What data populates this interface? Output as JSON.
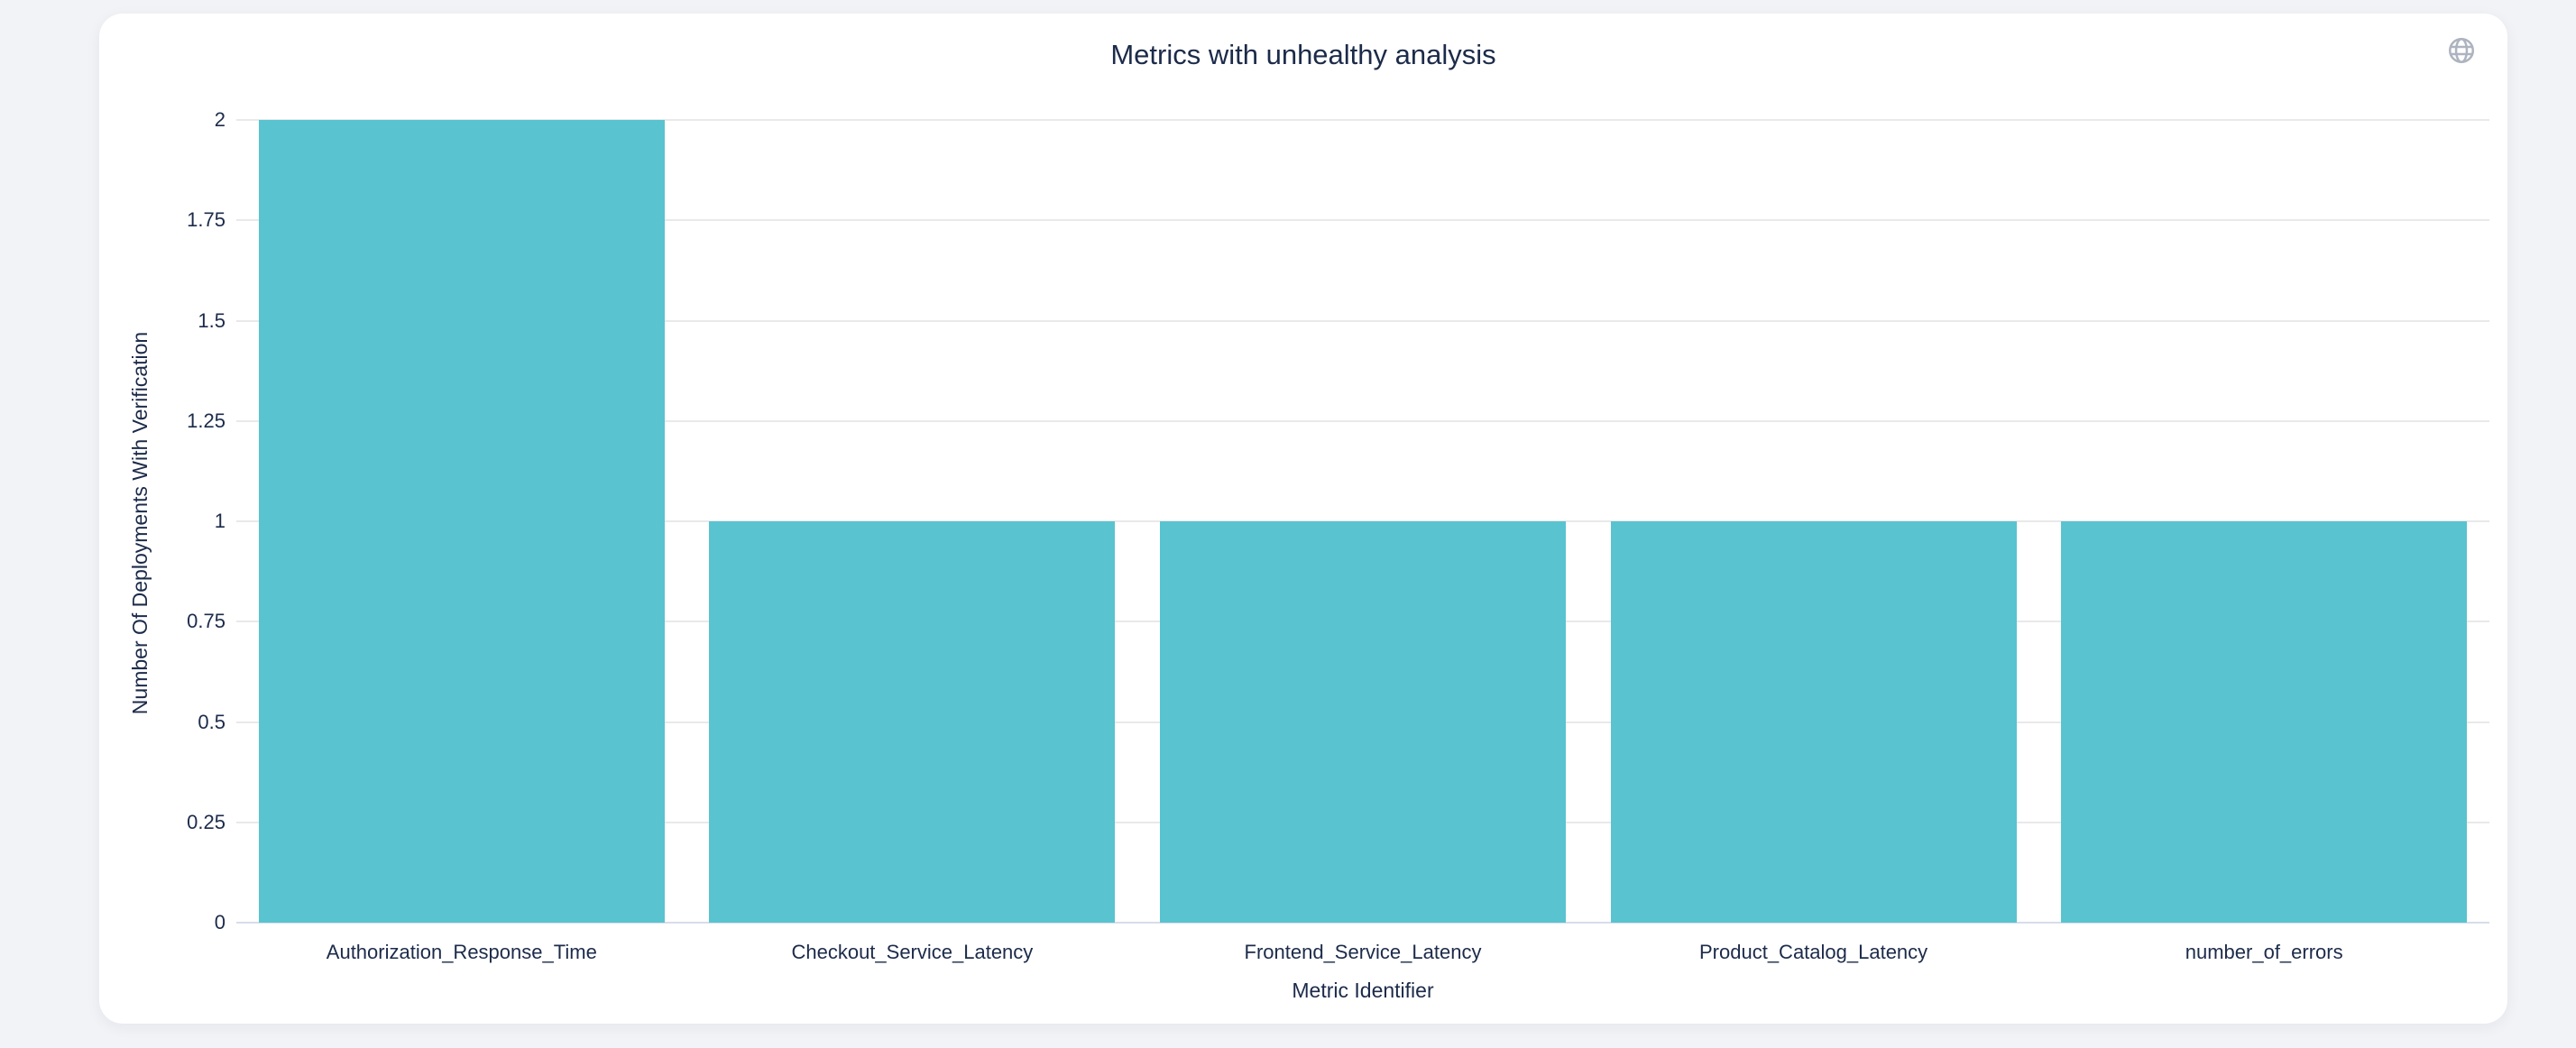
{
  "header": {
    "title": "Metrics with unhealthy analysis",
    "icon": "globe-icon"
  },
  "chart_data": {
    "type": "bar",
    "title": "Metrics with unhealthy analysis",
    "categories": [
      "Authorization_Response_Time",
      "Checkout_Service_Latency",
      "Frontend_Service_Latency",
      "Product_Catalog_Latency",
      "number_of_errors"
    ],
    "values": [
      2,
      1,
      1,
      1,
      1
    ],
    "xlabel": "Metric Identifier",
    "ylabel": "Number Of Deployments With Verification",
    "ylim": [
      0,
      2
    ],
    "yticks": [
      0,
      0.25,
      0.5,
      0.75,
      1,
      1.25,
      1.5,
      1.75,
      2
    ],
    "grid": true,
    "legend": false,
    "bar_color": "#59C3D0",
    "grid_color": "#E9E9E9",
    "axis_line_color": "#D8DDEB",
    "label_color": "#1C2B4A",
    "icon_color": "#AEB4BF",
    "card_background": "#FFFFFF",
    "page_background": "#F2F3F6"
  }
}
